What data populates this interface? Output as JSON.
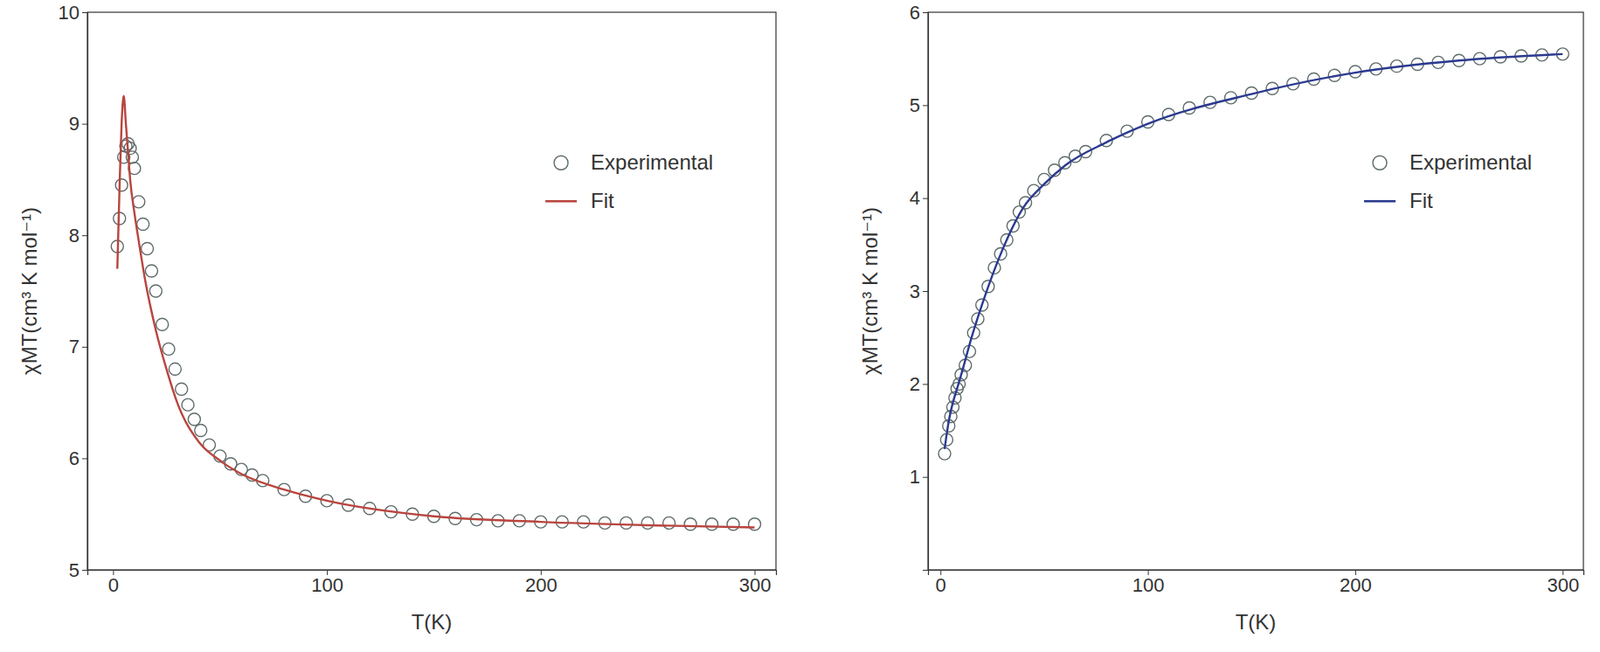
{
  "chart_data": [
    {
      "type": "line",
      "x_label": "T(K)",
      "y_label": "χMT(cm³ K mol⁻¹)",
      "xlim": [
        -12,
        310
      ],
      "xticks": [
        0,
        100,
        200,
        300
      ],
      "ylim": [
        5,
        10
      ],
      "yticks": [
        5,
        6,
        7,
        8,
        9,
        10
      ],
      "legend": "right",
      "series": [
        {
          "name": "Experimental",
          "type": "scatter",
          "marker": "circle",
          "color": "#5f6b6b",
          "x": [
            2,
            3,
            4,
            5,
            6,
            7,
            8,
            9,
            10,
            12,
            14,
            16,
            18,
            20,
            23,
            26,
            29,
            32,
            35,
            38,
            41,
            45,
            50,
            55,
            60,
            65,
            70,
            80,
            90,
            100,
            110,
            120,
            130,
            140,
            150,
            160,
            170,
            180,
            190,
            200,
            210,
            220,
            230,
            240,
            250,
            260,
            270,
            280,
            290,
            300
          ],
          "values": [
            7.9,
            8.15,
            8.45,
            8.7,
            8.8,
            8.82,
            8.78,
            8.7,
            8.6,
            8.3,
            8.1,
            7.88,
            7.68,
            7.5,
            7.2,
            6.98,
            6.8,
            6.62,
            6.48,
            6.35,
            6.25,
            6.12,
            6.02,
            5.95,
            5.9,
            5.85,
            5.8,
            5.72,
            5.66,
            5.62,
            5.58,
            5.55,
            5.52,
            5.5,
            5.48,
            5.46,
            5.45,
            5.44,
            5.44,
            5.43,
            5.43,
            5.43,
            5.42,
            5.42,
            5.42,
            5.42,
            5.41,
            5.41,
            5.41,
            5.41
          ]
        },
        {
          "name": "Fit",
          "type": "line",
          "line_style": "solid",
          "color": "#b8453e",
          "x": [
            2,
            3,
            4,
            5,
            6,
            7,
            8,
            10,
            12,
            15,
            20,
            25,
            30,
            40,
            50,
            60,
            80,
            100,
            150,
            200,
            250,
            300
          ],
          "values": [
            7.7,
            8.4,
            9.0,
            9.25,
            9.0,
            8.75,
            8.5,
            8.2,
            7.95,
            7.6,
            7.15,
            6.8,
            6.5,
            6.15,
            5.98,
            5.86,
            5.72,
            5.62,
            5.48,
            5.43,
            5.4,
            5.38
          ]
        }
      ]
    },
    {
      "type": "line",
      "x_label": "T(K)",
      "y_label": "χMT(cm³ K mol⁻¹)",
      "xlim": [
        -6,
        310
      ],
      "xticks": [
        0,
        100,
        200,
        300
      ],
      "ylim": [
        0,
        6
      ],
      "yticks": [
        1,
        2,
        3,
        4,
        5,
        6
      ],
      "legend": "right",
      "series": [
        {
          "name": "Experimental",
          "type": "scatter",
          "marker": "circle",
          "color": "#5f6b6b",
          "x": [
            2,
            3,
            4,
            5,
            6,
            7,
            8,
            9,
            10,
            12,
            14,
            16,
            18,
            20,
            23,
            26,
            29,
            32,
            35,
            38,
            41,
            45,
            50,
            55,
            60,
            65,
            70,
            80,
            90,
            100,
            110,
            120,
            130,
            140,
            150,
            160,
            170,
            180,
            190,
            200,
            210,
            220,
            230,
            240,
            250,
            260,
            270,
            280,
            290,
            300
          ],
          "values": [
            1.25,
            1.4,
            1.55,
            1.65,
            1.75,
            1.85,
            1.95,
            2.0,
            2.1,
            2.2,
            2.35,
            2.55,
            2.7,
            2.85,
            3.05,
            3.25,
            3.4,
            3.55,
            3.7,
            3.85,
            3.95,
            4.08,
            4.2,
            4.3,
            4.38,
            4.45,
            4.5,
            4.62,
            4.72,
            4.82,
            4.9,
            4.97,
            5.03,
            5.08,
            5.13,
            5.18,
            5.23,
            5.28,
            5.32,
            5.36,
            5.39,
            5.42,
            5.44,
            5.46,
            5.48,
            5.5,
            5.52,
            5.53,
            5.54,
            5.55
          ]
        },
        {
          "name": "Fit",
          "type": "line",
          "line_style": "solid",
          "color": "#2b3a8f",
          "x": [
            2,
            4,
            6,
            8,
            10,
            15,
            20,
            30,
            40,
            50,
            60,
            80,
            100,
            150,
            200,
            250,
            300
          ],
          "values": [
            1.3,
            1.6,
            1.8,
            1.95,
            2.1,
            2.5,
            2.85,
            3.45,
            3.9,
            4.15,
            4.35,
            4.6,
            4.8,
            5.12,
            5.35,
            5.48,
            5.55
          ]
        }
      ]
    }
  ]
}
